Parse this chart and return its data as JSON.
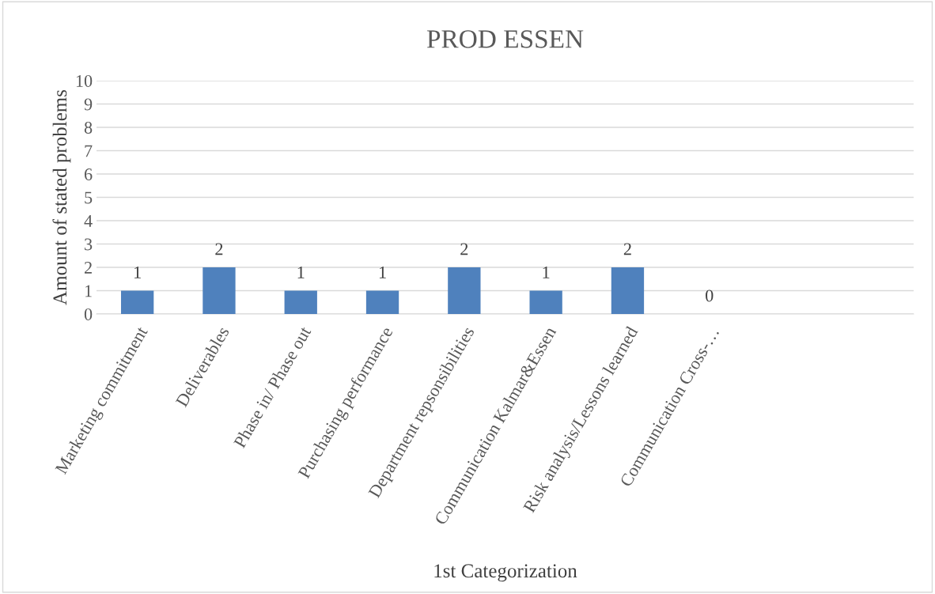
{
  "chart_data": {
    "type": "bar",
    "title": "PROD ESSEN",
    "xlabel": "1st Categorization",
    "ylabel": "Amount of stated problems",
    "categories": [
      "Marketing commitment",
      "Deliverables",
      "Phase in/ Phase out",
      "Purchasing performance",
      "Department repsonsibilities",
      "Communication Kalmar&Essen",
      "Risk analysis/Lessons learned",
      "Communication Cross-…",
      null,
      null
    ],
    "values": [
      1,
      2,
      1,
      1,
      2,
      1,
      2,
      0,
      null,
      null
    ],
    "color": "#4f81bd",
    "ylim": [
      0,
      10
    ],
    "yticks": [
      0,
      1,
      2,
      3,
      4,
      5,
      6,
      7,
      8,
      9,
      10
    ],
    "grid": "y",
    "data_labels": true,
    "legend": false
  }
}
